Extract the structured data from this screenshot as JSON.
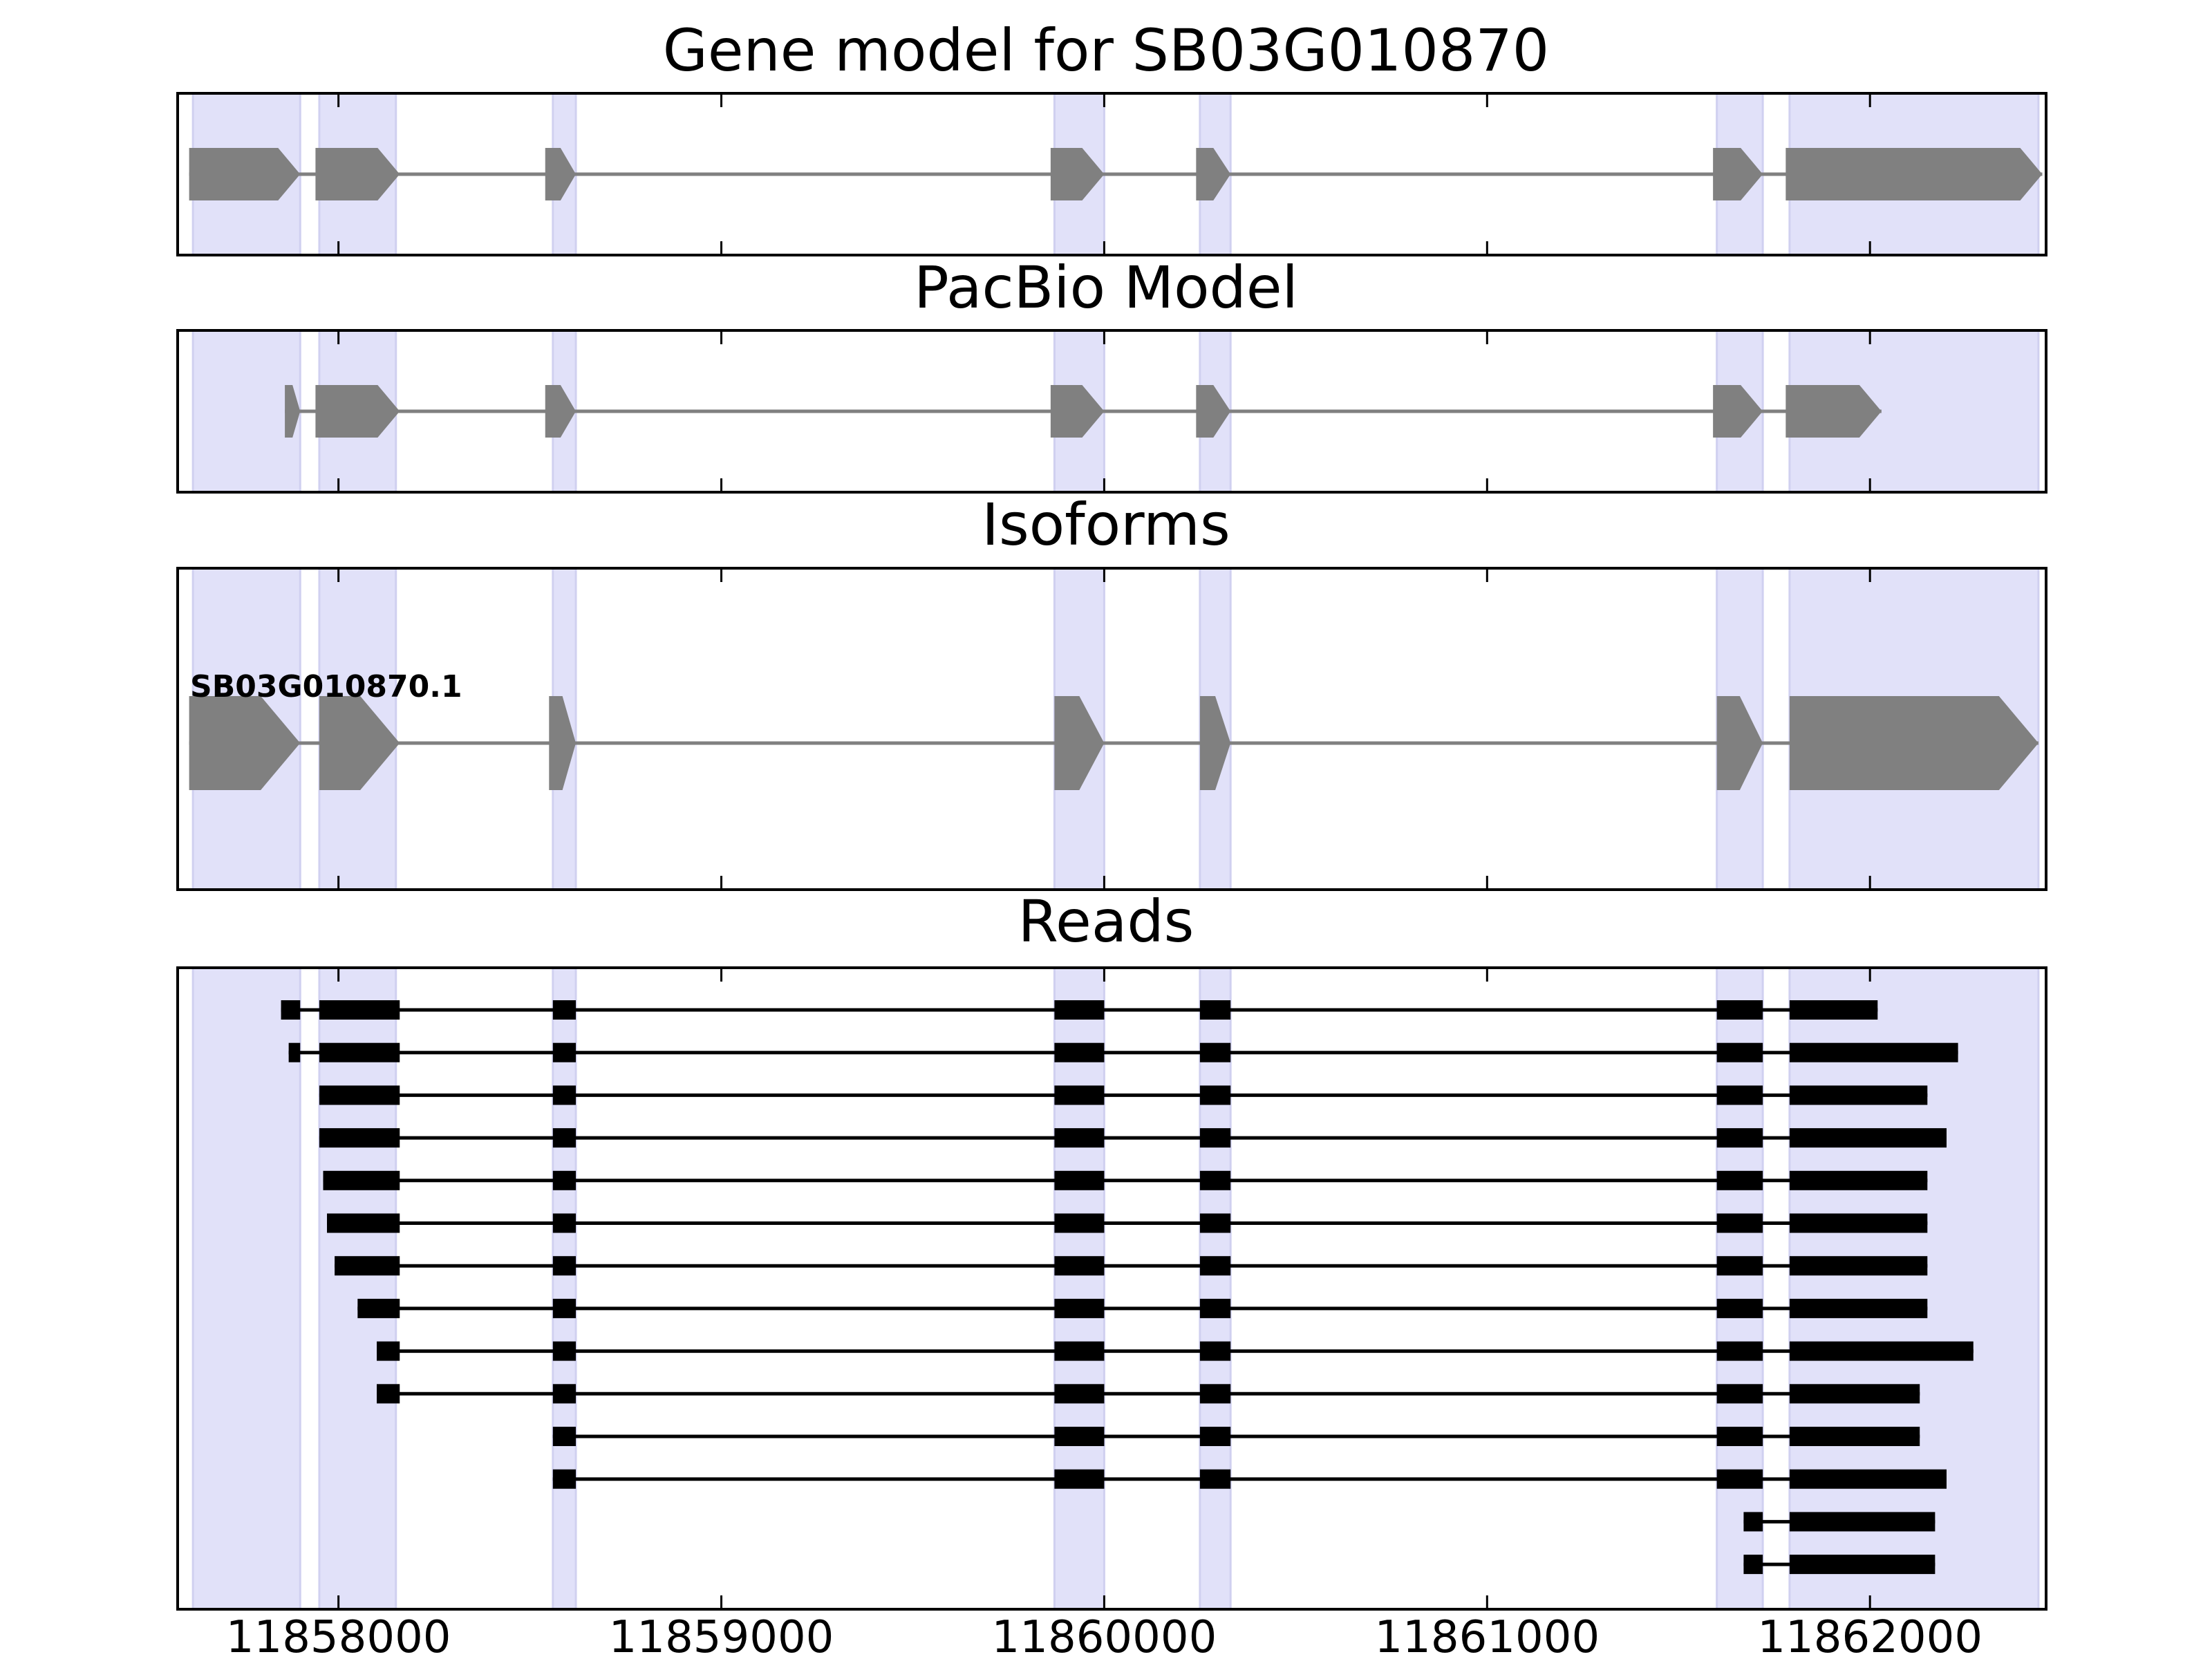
{
  "figure": {
    "x_range": [
      11857580,
      11862460
    ],
    "x_ticks": [
      11858000,
      11859000,
      11860000,
      11861000,
      11862000
    ],
    "x_tick_labels": [
      "11858000",
      "11859000",
      "11860000",
      "11861000",
      "11862000"
    ],
    "highlight_color": "#e1e1f9",
    "feature_color": "#808080",
    "read_color": "#000000",
    "highlight_regions": [
      [
        11857620,
        11857900
      ],
      [
        11857950,
        11858150
      ],
      [
        11858560,
        11858620
      ],
      [
        11859870,
        11860000
      ],
      [
        11860250,
        11860330
      ],
      [
        11861600,
        11861720
      ],
      [
        11861790,
        11862440
      ]
    ]
  },
  "panels": [
    {
      "id": "gene-model",
      "title": "Gene model for SB03G010870",
      "exons": [
        [
          11857610,
          11857900
        ],
        [
          11857940,
          11858160
        ],
        [
          11858540,
          11858620
        ],
        [
          11859860,
          11860000
        ],
        [
          11860240,
          11860330
        ],
        [
          11861590,
          11861720
        ],
        [
          11861780,
          11862450
        ]
      ]
    },
    {
      "id": "pacbio-model",
      "title": "PacBio Model",
      "exons": [
        [
          11857860,
          11857900
        ],
        [
          11857940,
          11858160
        ],
        [
          11858540,
          11858620
        ],
        [
          11859860,
          11860000
        ],
        [
          11860240,
          11860330
        ],
        [
          11861590,
          11861720
        ],
        [
          11861780,
          11862030
        ]
      ]
    },
    {
      "id": "isoforms",
      "title": "Isoforms",
      "isoform_label": "SB03G010870.1",
      "exons": [
        [
          11857610,
          11857900
        ],
        [
          11857950,
          11858160
        ],
        [
          11858550,
          11858620
        ],
        [
          11859870,
          11860000
        ],
        [
          11860250,
          11860330
        ],
        [
          11861600,
          11861720
        ],
        [
          11861790,
          11862440
        ]
      ]
    },
    {
      "id": "reads",
      "title": "Reads"
    }
  ],
  "reads": [
    [
      [
        11857850,
        11857900
      ],
      [
        11857950,
        11858160
      ],
      [
        11858560,
        11858620
      ],
      [
        11859870,
        11860000
      ],
      [
        11860250,
        11860330
      ],
      [
        11861600,
        11861720
      ],
      [
        11861790,
        11862020
      ]
    ],
    [
      [
        11857870,
        11857900
      ],
      [
        11857950,
        11858160
      ],
      [
        11858560,
        11858620
      ],
      [
        11859870,
        11860000
      ],
      [
        11860250,
        11860330
      ],
      [
        11861600,
        11861720
      ],
      [
        11861790,
        11862230
      ]
    ],
    [
      [
        11857950,
        11858160
      ],
      [
        11858560,
        11858620
      ],
      [
        11859870,
        11860000
      ],
      [
        11860250,
        11860330
      ],
      [
        11861600,
        11861720
      ],
      [
        11861790,
        11862150
      ]
    ],
    [
      [
        11857950,
        11858160
      ],
      [
        11858560,
        11858620
      ],
      [
        11859870,
        11860000
      ],
      [
        11860250,
        11860330
      ],
      [
        11861600,
        11861720
      ],
      [
        11861790,
        11862200
      ]
    ],
    [
      [
        11857960,
        11858160
      ],
      [
        11858560,
        11858620
      ],
      [
        11859870,
        11860000
      ],
      [
        11860250,
        11860330
      ],
      [
        11861600,
        11861720
      ],
      [
        11861790,
        11862150
      ]
    ],
    [
      [
        11857970,
        11858160
      ],
      [
        11858560,
        11858620
      ],
      [
        11859870,
        11860000
      ],
      [
        11860250,
        11860330
      ],
      [
        11861600,
        11861720
      ],
      [
        11861790,
        11862150
      ]
    ],
    [
      [
        11857990,
        11858160
      ],
      [
        11858560,
        11858620
      ],
      [
        11859870,
        11860000
      ],
      [
        11860250,
        11860330
      ],
      [
        11861600,
        11861720
      ],
      [
        11861790,
        11862150
      ]
    ],
    [
      [
        11858050,
        11858160
      ],
      [
        11858560,
        11858620
      ],
      [
        11859870,
        11860000
      ],
      [
        11860250,
        11860330
      ],
      [
        11861600,
        11861720
      ],
      [
        11861790,
        11862150
      ]
    ],
    [
      [
        11858100,
        11858160
      ],
      [
        11858560,
        11858620
      ],
      [
        11859870,
        11860000
      ],
      [
        11860250,
        11860330
      ],
      [
        11861600,
        11861720
      ],
      [
        11861790,
        11862270
      ]
    ],
    [
      [
        11858100,
        11858160
      ],
      [
        11858560,
        11858620
      ],
      [
        11859870,
        11860000
      ],
      [
        11860250,
        11860330
      ],
      [
        11861600,
        11861720
      ],
      [
        11861790,
        11862130
      ]
    ],
    [
      [
        11858560,
        11858620
      ],
      [
        11859870,
        11860000
      ],
      [
        11860250,
        11860330
      ],
      [
        11861600,
        11861720
      ],
      [
        11861790,
        11862130
      ]
    ],
    [
      [
        11858560,
        11858620
      ],
      [
        11859870,
        11860000
      ],
      [
        11860250,
        11860330
      ],
      [
        11861600,
        11861720
      ],
      [
        11861790,
        11862200
      ]
    ],
    [
      [
        11861670,
        11861720
      ],
      [
        11861790,
        11862170
      ]
    ],
    [
      [
        11861670,
        11861720
      ],
      [
        11861790,
        11862170
      ]
    ]
  ]
}
